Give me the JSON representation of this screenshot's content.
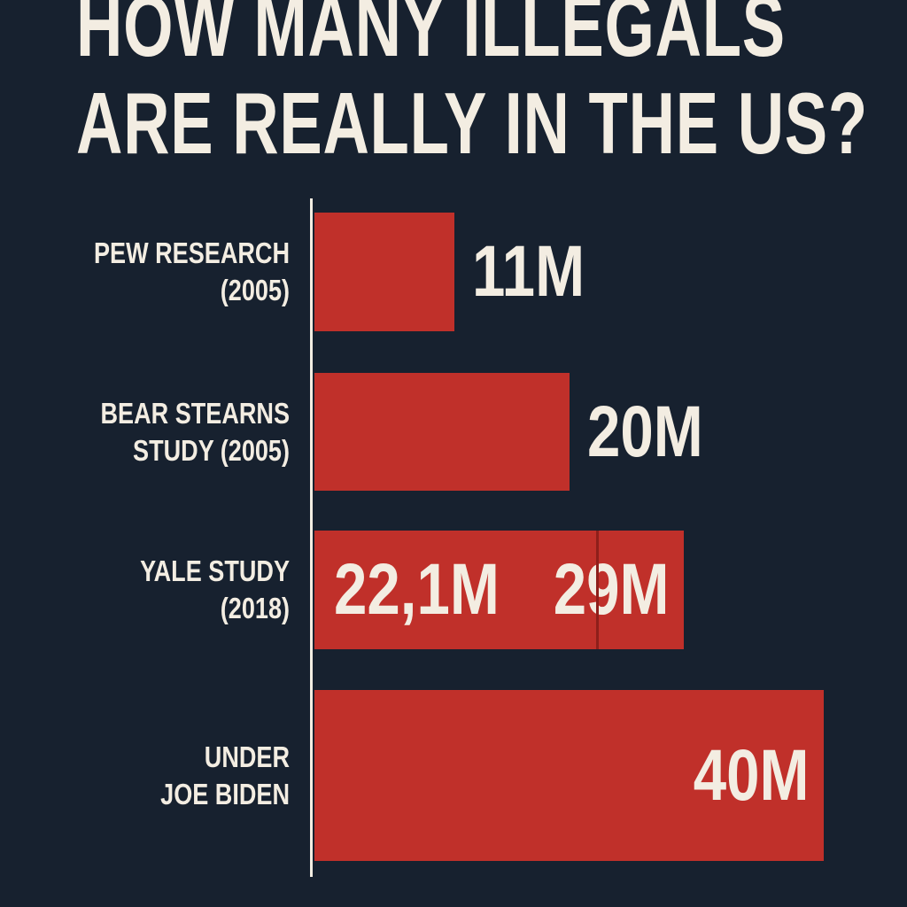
{
  "chart_data": {
    "type": "bar",
    "orientation": "horizontal",
    "title": "HOW MANY ILLEGALS\nARE REALLY IN THE US?",
    "categories": [
      "PEW RESEARCH\n(2005)",
      "BEAR STEARNS\nSTUDY (2005)",
      "YALE STUDY\n(2018)",
      "UNDER\nJOE BIDEN"
    ],
    "values": [
      11,
      20,
      29,
      40
    ],
    "value_labels": [
      "11M",
      "20M",
      "29M",
      "40M"
    ],
    "range_low": [
      null,
      null,
      22.1,
      null
    ],
    "range_low_labels": [
      null,
      null,
      "22,1M",
      null
    ],
    "color": "#c0302a"
  }
}
